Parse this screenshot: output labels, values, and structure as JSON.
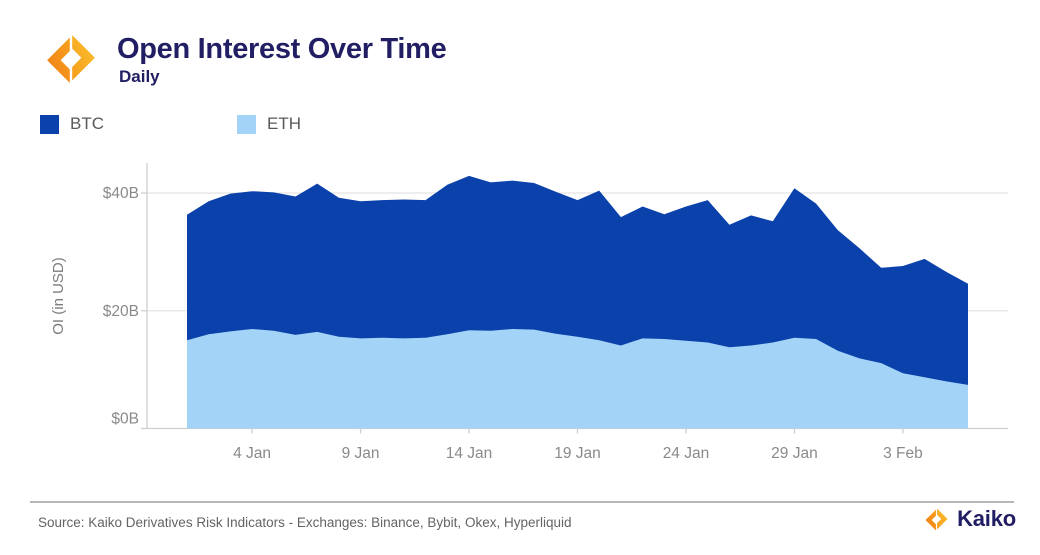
{
  "header": {
    "title": "Open Interest Over Time",
    "subtitle": "Daily"
  },
  "legend": [
    {
      "label": "BTC",
      "color": "#0b41ab"
    },
    {
      "label": "ETH",
      "color": "#a3d3f6"
    }
  ],
  "colors": {
    "btc": "#0b41ab",
    "eth": "#a3d3f6",
    "navy_text": "#211e63",
    "axis_text": "#8a8a8a",
    "grid": "#e4e4e4",
    "axis_line": "#cfcfcf",
    "logo_orange_dark": "#ed7d17",
    "logo_orange_light": "#fcc12f"
  },
  "footer": {
    "source": "Source: Kaiko Derivatives Risk Indicators - Exchanges: Binance, Bybit, Okex, Hyperliquid",
    "brand": "Kaiko"
  },
  "chart_data": {
    "type": "area",
    "stacked": true,
    "title": "Open Interest Over Time",
    "subtitle": "Daily",
    "ylabel": "OI (in USD)",
    "ylim": [
      0,
      45
    ],
    "grid": "horizontal",
    "legend_position": "top-left",
    "yticks": [
      {
        "label": "$0B",
        "value": 0
      },
      {
        "label": "$20B",
        "value": 20
      },
      {
        "label": "$40B",
        "value": 40
      }
    ],
    "x_tick_labels": [
      "4 Jan",
      "9 Jan",
      "14 Jan",
      "19 Jan",
      "24 Jan",
      "29 Jan",
      "3 Feb"
    ],
    "dates": [
      "1 Jan",
      "2 Jan",
      "3 Jan",
      "4 Jan",
      "5 Jan",
      "6 Jan",
      "7 Jan",
      "8 Jan",
      "9 Jan",
      "10 Jan",
      "11 Jan",
      "12 Jan",
      "13 Jan",
      "14 Jan",
      "15 Jan",
      "16 Jan",
      "17 Jan",
      "18 Jan",
      "19 Jan",
      "20 Jan",
      "21 Jan",
      "22 Jan",
      "23 Jan",
      "24 Jan",
      "25 Jan",
      "26 Jan",
      "27 Jan",
      "28 Jan",
      "29 Jan",
      "30 Jan",
      "31 Jan",
      "1 Feb",
      "2 Feb",
      "3 Feb",
      "4 Feb",
      "5 Feb",
      "6 Feb"
    ],
    "series": [
      {
        "name": "BTC",
        "color": "#0b41ab",
        "values": [
          21.3,
          22.6,
          23.4,
          23.4,
          23.5,
          23.5,
          25.2,
          23.6,
          23.3,
          23.4,
          23.6,
          23.4,
          25.4,
          26.2,
          25.2,
          25.2,
          24.9,
          24.1,
          23.2,
          25.4,
          21.8,
          22.4,
          21.2,
          22.8,
          24.2,
          20.8,
          22.1,
          20.6,
          25.4,
          23.0,
          20.5,
          18.7,
          16.2,
          18.2,
          20.1,
          18.6,
          17.2
        ]
      },
      {
        "name": "ETH",
        "color": "#a3d3f6",
        "values": [
          15.0,
          16.0,
          16.5,
          16.9,
          16.6,
          15.9,
          16.4,
          15.6,
          15.3,
          15.4,
          15.3,
          15.4,
          16.0,
          16.7,
          16.6,
          16.9,
          16.8,
          16.1,
          15.6,
          15.0,
          14.1,
          15.3,
          15.2,
          14.9,
          14.6,
          13.8,
          14.1,
          14.6,
          15.4,
          15.2,
          13.2,
          11.9,
          11.1,
          9.4,
          8.7,
          8.0,
          7.4
        ]
      }
    ]
  }
}
